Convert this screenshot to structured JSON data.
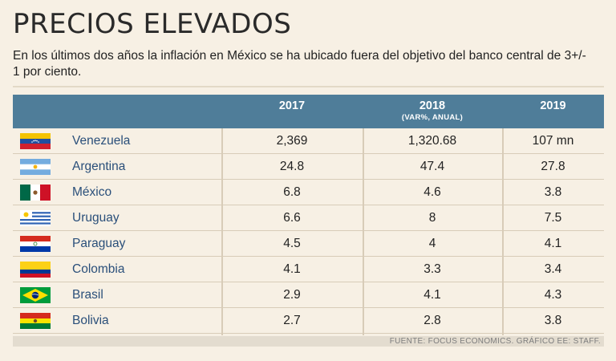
{
  "header": {
    "title": "PRECIOS ELEVADOS",
    "subtitle": "En los últimos dos años la inflación en México se ha ubicado fuera del objetivo del banco central de 3+/- 1 por ciento."
  },
  "chart_data": {
    "type": "table",
    "columns": [
      {
        "label": "2017",
        "sublabel": ""
      },
      {
        "label": "2018",
        "sublabel": "(VAR%, ANUAL)"
      },
      {
        "label": "2019",
        "sublabel": ""
      }
    ],
    "rows": [
      {
        "country": "Venezuela",
        "flag": "venezuela-flag",
        "v2017": "2,369",
        "v2018": "1,320.68",
        "v2019": "107 mn"
      },
      {
        "country": "Argentina",
        "flag": "argentina-flag",
        "v2017": "24.8",
        "v2018": "47.4",
        "v2019": "27.8"
      },
      {
        "country": "México",
        "flag": "mexico-flag",
        "v2017": "6.8",
        "v2018": "4.6",
        "v2019": "3.8"
      },
      {
        "country": "Uruguay",
        "flag": "uruguay-flag",
        "v2017": "6.6",
        "v2018": "8",
        "v2019": "7.5"
      },
      {
        "country": "Paraguay",
        "flag": "paraguay-flag",
        "v2017": "4.5",
        "v2018": "4",
        "v2019": "4.1"
      },
      {
        "country": "Colombia",
        "flag": "colombia-flag",
        "v2017": "4.1",
        "v2018": "3.3",
        "v2019": "3.4"
      },
      {
        "country": "Brasil",
        "flag": "brasil-flag",
        "v2017": "2.9",
        "v2018": "4.1",
        "v2019": "4.3"
      },
      {
        "country": "Bolivia",
        "flag": "bolivia-flag",
        "v2017": "2.7",
        "v2018": "2.8",
        "v2019": "3.8"
      }
    ]
  },
  "footer": {
    "source": "FUENTE: FOCUS ECONOMICS. GRÁFICO EE: STAFF."
  },
  "colors": {
    "header_bg": "#4f7d99",
    "page_bg": "#f7f0e4",
    "country_text": "#2a4f7a"
  }
}
